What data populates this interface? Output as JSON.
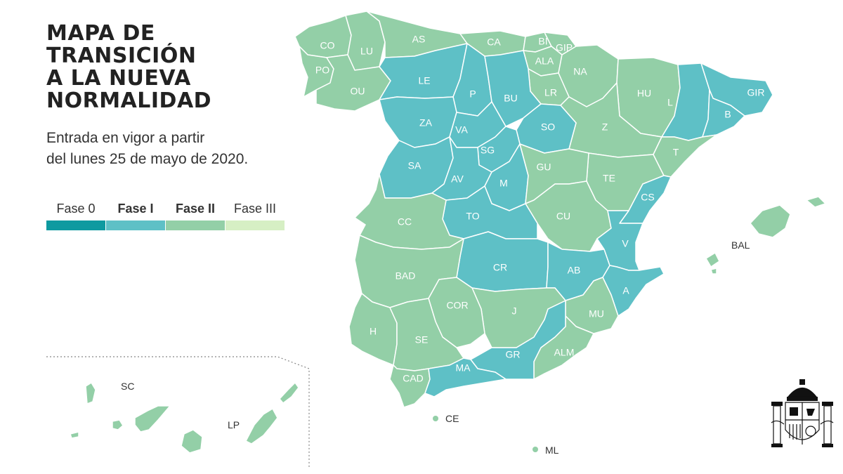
{
  "title_lines": [
    "MAPA DE",
    "TRANSICIÓN",
    "A LA NUEVA",
    "NORMALIDAD"
  ],
  "subtitle_lines": [
    "Entrada en vigor a partir",
    "del lunes 25 de mayo de 2020."
  ],
  "legend": [
    {
      "label": "Fase 0",
      "color": "#0e9aa0",
      "bold": false
    },
    {
      "label": "Fase I",
      "color": "#5ec0c6",
      "bold": true
    },
    {
      "label": "Fase II",
      "color": "#93cfa7",
      "bold": true
    },
    {
      "label": "Fase III",
      "color": "#d6efc4",
      "bold": false
    }
  ],
  "colors": {
    "fase1": "#5ec0c6",
    "fase2": "#93cfa7",
    "border": "#ffffff",
    "inset_border": "#888888"
  },
  "provinces": {
    "CO": {
      "label": "CO",
      "phase": "Fase II"
    },
    "LU": {
      "label": "LU",
      "phase": "Fase II"
    },
    "PO": {
      "label": "PO",
      "phase": "Fase II"
    },
    "OU": {
      "label": "OU",
      "phase": "Fase II"
    },
    "AS": {
      "label": "AS",
      "phase": "Fase II"
    },
    "CA": {
      "label": "CA",
      "phase": "Fase II"
    },
    "BI": {
      "label": "BI",
      "phase": "Fase II"
    },
    "GIP": {
      "label": "GIP",
      "phase": "Fase II"
    },
    "ALA": {
      "label": "ALA",
      "phase": "Fase II"
    },
    "NA": {
      "label": "NA",
      "phase": "Fase II"
    },
    "LR": {
      "label": "LR",
      "phase": "Fase II"
    },
    "HU": {
      "label": "HU",
      "phase": "Fase II"
    },
    "Z": {
      "label": "Z",
      "phase": "Fase II"
    },
    "TE": {
      "label": "TE",
      "phase": "Fase II"
    },
    "T": {
      "label": "T",
      "phase": "Fase II"
    },
    "GU": {
      "label": "GU",
      "phase": "Fase II"
    },
    "CU": {
      "label": "CU",
      "phase": "Fase II"
    },
    "CC": {
      "label": "CC",
      "phase": "Fase II"
    },
    "BAD": {
      "label": "BAD",
      "phase": "Fase II"
    },
    "COR": {
      "label": "COR",
      "phase": "Fase II"
    },
    "J": {
      "label": "J",
      "phase": "Fase II"
    },
    "H": {
      "label": "H",
      "phase": "Fase II"
    },
    "SE": {
      "label": "SE",
      "phase": "Fase II"
    },
    "CAD": {
      "label": "CAD",
      "phase": "Fase II"
    },
    "ALM": {
      "label": "ALM",
      "phase": "Fase II"
    },
    "MU": {
      "label": "MU",
      "phase": "Fase II"
    },
    "LE": {
      "label": "LE",
      "phase": "Fase I"
    },
    "P": {
      "label": "P",
      "phase": "Fase I"
    },
    "BU": {
      "label": "BU",
      "phase": "Fase I"
    },
    "ZA": {
      "label": "ZA",
      "phase": "Fase I"
    },
    "VA": {
      "label": "VA",
      "phase": "Fase I"
    },
    "SO": {
      "label": "SO",
      "phase": "Fase I"
    },
    "SG": {
      "label": "SG",
      "phase": "Fase I"
    },
    "SA": {
      "label": "SA",
      "phase": "Fase I"
    },
    "AV": {
      "label": "AV",
      "phase": "Fase I"
    },
    "M": {
      "label": "M",
      "phase": "Fase I"
    },
    "TO": {
      "label": "TO",
      "phase": "Fase I"
    },
    "CR": {
      "label": "CR",
      "phase": "Fase I"
    },
    "AB": {
      "label": "AB",
      "phase": "Fase I"
    },
    "CS": {
      "label": "CS",
      "phase": "Fase I"
    },
    "V": {
      "label": "V",
      "phase": "Fase I"
    },
    "A": {
      "label": "A",
      "phase": "Fase I"
    },
    "GR": {
      "label": "GR",
      "phase": "Fase I"
    },
    "MA": {
      "label": "MA",
      "phase": "Fase I"
    },
    "L": {
      "label": "L",
      "phase": "Fase I"
    },
    "B": {
      "label": "B",
      "phase": "Fase I"
    },
    "GIR": {
      "label": "GIR",
      "phase": "Fase I"
    }
  },
  "islands": {
    "BAL": {
      "label": "BAL",
      "phase": "Fase II"
    },
    "SC": {
      "label": "SC",
      "phase": "Fase II"
    },
    "LP": {
      "label": "LP",
      "phase": "Fase II"
    },
    "CE": {
      "label": "CE",
      "phase": "Fase II"
    },
    "ML": {
      "label": "ML",
      "phase": "Fase II"
    }
  },
  "emblem": {
    "icon": "coat-of-arms-of-spain-icon"
  }
}
